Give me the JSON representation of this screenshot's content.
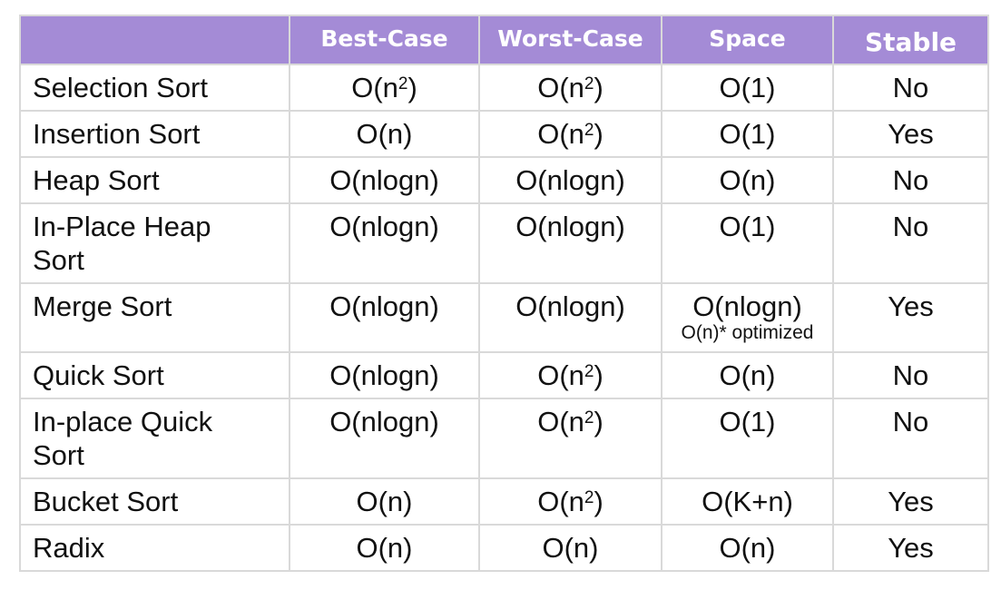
{
  "table": {
    "headers": [
      "",
      "Best-Case",
      "Worst-Case",
      "Space",
      "Stable"
    ],
    "rows": [
      {
        "name": "Selection Sort",
        "best": {
          "base": "O(n",
          "exp": "2",
          "tail": ")"
        },
        "worst": {
          "base": "O(n",
          "exp": "2",
          "tail": ")"
        },
        "space": "O(1)",
        "space_note": "",
        "stable": "No"
      },
      {
        "name": "Insertion Sort",
        "best": {
          "base": "O(n)",
          "exp": "",
          "tail": ""
        },
        "worst": {
          "base": "O(n",
          "exp": "2",
          "tail": ")"
        },
        "space": "O(1)",
        "space_note": "",
        "stable": "Yes"
      },
      {
        "name": "Heap Sort",
        "best": {
          "base": "O(nlogn)",
          "exp": "",
          "tail": ""
        },
        "worst": {
          "base": "O(nlogn)",
          "exp": "",
          "tail": ""
        },
        "space": "O(n)",
        "space_note": "",
        "stable": "No"
      },
      {
        "name": "In-Place Heap Sort",
        "best": {
          "base": "O(nlogn)",
          "exp": "",
          "tail": ""
        },
        "worst": {
          "base": "O(nlogn)",
          "exp": "",
          "tail": ""
        },
        "space": "O(1)",
        "space_note": "",
        "stable": "No"
      },
      {
        "name": "Merge Sort",
        "best": {
          "base": "O(nlogn)",
          "exp": "",
          "tail": ""
        },
        "worst": {
          "base": "O(nlogn)",
          "exp": "",
          "tail": ""
        },
        "space": "O(nlogn)",
        "space_note": "O(n)* optimized",
        "stable": "Yes"
      },
      {
        "name": "Quick Sort",
        "best": {
          "base": "O(nlogn)",
          "exp": "",
          "tail": ""
        },
        "worst": {
          "base": "O(n",
          "exp": "2",
          "tail": ")"
        },
        "space": "O(n)",
        "space_note": "",
        "stable": "No"
      },
      {
        "name": "In-place Quick Sort",
        "best": {
          "base": "O(nlogn)",
          "exp": "",
          "tail": ""
        },
        "worst": {
          "base": "O(n",
          "exp": "2",
          "tail": ")"
        },
        "space": "O(1)",
        "space_note": "",
        "stable": "No"
      },
      {
        "name": "Bucket Sort",
        "best": {
          "base": "O(n)",
          "exp": "",
          "tail": ""
        },
        "worst": {
          "base": "O(n",
          "exp": "2",
          "tail": ")"
        },
        "space": "O(K+n)",
        "space_note": "",
        "stable": "Yes"
      },
      {
        "name": "Radix",
        "best": {
          "base": "O(n)",
          "exp": "",
          "tail": ""
        },
        "worst": {
          "base": "O(n)",
          "exp": "",
          "tail": ""
        },
        "space": "O(n)",
        "space_note": "",
        "stable": "Yes"
      }
    ]
  },
  "colors": {
    "header_bg": "#a48bd6",
    "header_text": "#ffffff",
    "border": "#d9d9d9",
    "body_text": "#111111"
  }
}
